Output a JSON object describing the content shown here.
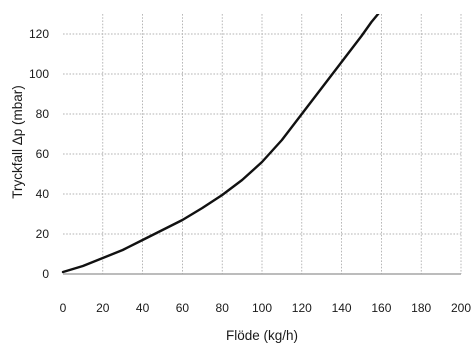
{
  "chart_data": {
    "type": "line",
    "title": "",
    "xlabel": "Flöde (kg/h)",
    "ylabel": "Tryckfall Δp (mbar)",
    "xlim": [
      0,
      200
    ],
    "ylim": [
      0,
      130
    ],
    "x_ticks": [
      "0",
      "20",
      "40",
      "60",
      "80",
      "100",
      "120",
      "140",
      "160",
      "180",
      "200"
    ],
    "y_ticks": [
      "0",
      "20",
      "40",
      "60",
      "80",
      "100",
      "120"
    ],
    "grid": true,
    "legend": "none",
    "line_color": "#111111",
    "series": [
      {
        "x": [
          0,
          10,
          20,
          30,
          40,
          50,
          60,
          70,
          80,
          90,
          100,
          110,
          120,
          130,
          140,
          150,
          155,
          160,
          163
        ],
        "values": [
          1,
          4,
          8,
          12,
          17,
          22,
          27,
          33,
          39.5,
          47,
          56,
          67,
          80,
          93,
          106,
          119,
          126,
          132,
          136
        ]
      }
    ]
  }
}
